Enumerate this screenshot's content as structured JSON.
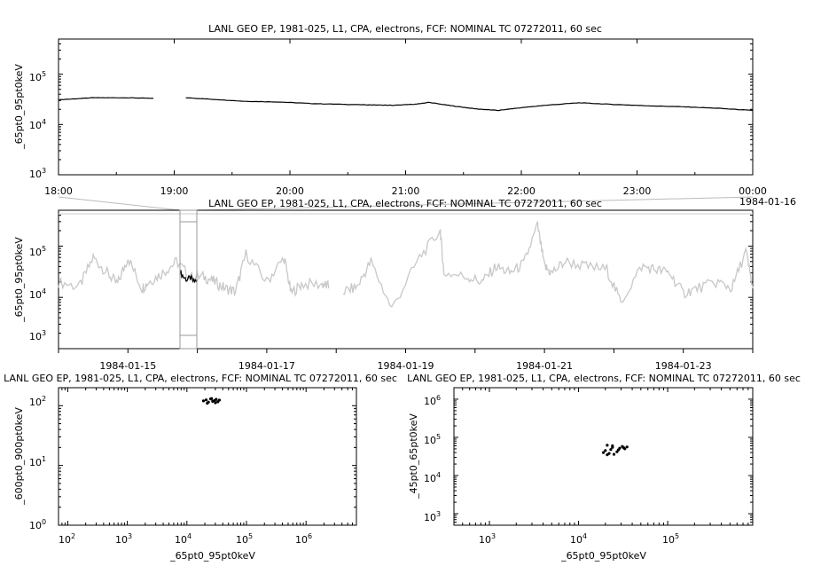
{
  "chart_data": [
    {
      "type": "line",
      "title": "LANL GEO EP, 1981-025, L1, CPA, electrons, FCF: NOMINAL TC 07272011, 60 sec",
      "ylabel": "_65pt0_95pt0keV",
      "yscale": "log",
      "ylim": [
        1000,
        500000
      ],
      "y_ticks": [
        1000,
        10000,
        100000
      ],
      "x_range": [
        "1984-01-15T18:00",
        "1984-01-16T00:00"
      ],
      "x_ticklabels": [
        "18:00",
        "19:00",
        "20:00",
        "21:00",
        "22:00",
        "23:00",
        "00:00"
      ],
      "x_date_label": "1984-01-16",
      "series": [
        {
          "color": "#000000",
          "x_hours": [
            18.0,
            18.3,
            18.6,
            18.82,
            18.92,
            19.1,
            19.3,
            19.6,
            19.9,
            20.2,
            20.5,
            20.7,
            20.9,
            21.1,
            21.2,
            21.4,
            21.6,
            21.8,
            21.95,
            22.2,
            22.5,
            22.8,
            23.1,
            23.4,
            23.7,
            24.0
          ],
          "values": [
            31000,
            34000,
            34000,
            33000,
            null,
            34000,
            32000,
            29000,
            28000,
            26000,
            25000,
            24500,
            24000,
            25500,
            27500,
            23500,
            20500,
            19000,
            21000,
            24000,
            27000,
            25000,
            23500,
            22500,
            21000,
            19000
          ]
        }
      ]
    },
    {
      "type": "line",
      "title": "LANL GEO EP, 1981-025, L1, CPA, electrons, FCF: NOMINAL TC 07272011, 60 sec",
      "ylabel": "_65pt0_95pt0keV",
      "yscale": "log",
      "ylim": [
        1000,
        500000
      ],
      "y_ticks": [
        1000,
        10000,
        100000
      ],
      "x_range": [
        "1984-01-14",
        "1984-01-24"
      ],
      "x_ticklabels": [
        "1984-01-15",
        "1984-01-17",
        "1984-01-19",
        "1984-01-21",
        "1984-01-23"
      ],
      "highlight_range_hours": [
        42,
        48
      ],
      "series": [
        {
          "color": "#c8c8c8",
          "x_days": [
            0.0,
            0.3,
            0.5,
            0.7,
            0.85,
            1.0,
            1.2,
            1.3,
            1.5,
            1.7,
            1.9,
            2.1,
            2.25,
            2.4,
            2.55,
            2.7,
            3.0,
            3.25,
            3.35,
            3.5,
            3.8,
            3.9,
            4.0,
            4.1,
            4.3,
            4.5,
            4.8,
            5.2,
            5.5,
            5.55,
            5.9,
            6.1,
            6.3,
            6.5,
            6.7,
            6.9,
            7.0,
            7.1,
            7.3,
            7.6,
            7.9,
            8.1,
            8.4,
            8.6,
            8.8,
            9.0,
            9.2,
            9.5,
            9.7,
            9.9,
            10.0
          ],
          "values": [
            20000,
            16000,
            60000,
            30000,
            18000,
            60000,
            15000,
            20000,
            30000,
            50000,
            25000,
            25000,
            20000,
            15000,
            13000,
            70000,
            20000,
            60000,
            12000,
            18000,
            18000,
            16000,
            null,
            13000,
            16000,
            50000,
            6000,
            60000,
            200000,
            30000,
            25000,
            20000,
            40000,
            30000,
            45000,
            250000,
            40000,
            30000,
            50000,
            40000,
            35000,
            8000,
            40000,
            35000,
            30000,
            12000,
            15000,
            20000,
            15000,
            80000,
            15000
          ]
        },
        {
          "color": "#000000",
          "x_days": [
            1.75,
            1.8,
            1.85,
            1.9,
            1.95,
            2.0
          ],
          "values": [
            32000,
            25000,
            22000,
            24000,
            20000,
            22000
          ]
        }
      ]
    },
    {
      "type": "scatter",
      "title": "LANL GEO EP, 1981-025, L1, CPA, electrons, FCF: NOMINAL TC 07272011, 60 sec",
      "xlabel": "_65pt0_95pt0keV",
      "ylabel": "_600pt0_900pt0keV",
      "xscale": "log",
      "yscale": "log",
      "xlim": [
        70,
        7000000
      ],
      "ylim": [
        1,
        200
      ],
      "x_ticks": [
        100,
        1000,
        10000,
        100000,
        1000000
      ],
      "y_ticks": [
        1,
        10,
        100
      ],
      "points": {
        "color": "#000000",
        "x": [
          19000,
          21000,
          23000,
          25000,
          27000,
          29000,
          31000,
          33000,
          35000,
          22000,
          26000,
          30000
        ],
        "y": [
          120,
          125,
          115,
          130,
          118,
          122,
          128,
          116,
          124,
          110,
          132,
          112
        ]
      }
    },
    {
      "type": "scatter",
      "title": "LANL GEO EP, 1981-025, L1, CPA, electrons, FCF: NOMINAL TC 07272011, 60 sec",
      "xlabel": "_65pt0_95pt0keV",
      "ylabel": "_45pt0_65pt0keV",
      "xscale": "log",
      "yscale": "log",
      "xlim": [
        400,
        900000
      ],
      "ylim": [
        500,
        2000000
      ],
      "x_ticks": [
        1000,
        10000,
        100000
      ],
      "y_ticks": [
        1000,
        10000,
        100000,
        1000000
      ],
      "points": {
        "color": "#000000",
        "x": [
          19000,
          20000,
          21000,
          22000,
          23000,
          24000,
          25000,
          27000,
          29000,
          31000,
          33000,
          35000,
          21000,
          24000,
          28000,
          32000
        ],
        "y": [
          40000,
          45000,
          62000,
          38000,
          48000,
          55000,
          36000,
          42000,
          52000,
          58000,
          50000,
          56000,
          35000,
          60000,
          47000,
          54000
        ]
      }
    }
  ]
}
